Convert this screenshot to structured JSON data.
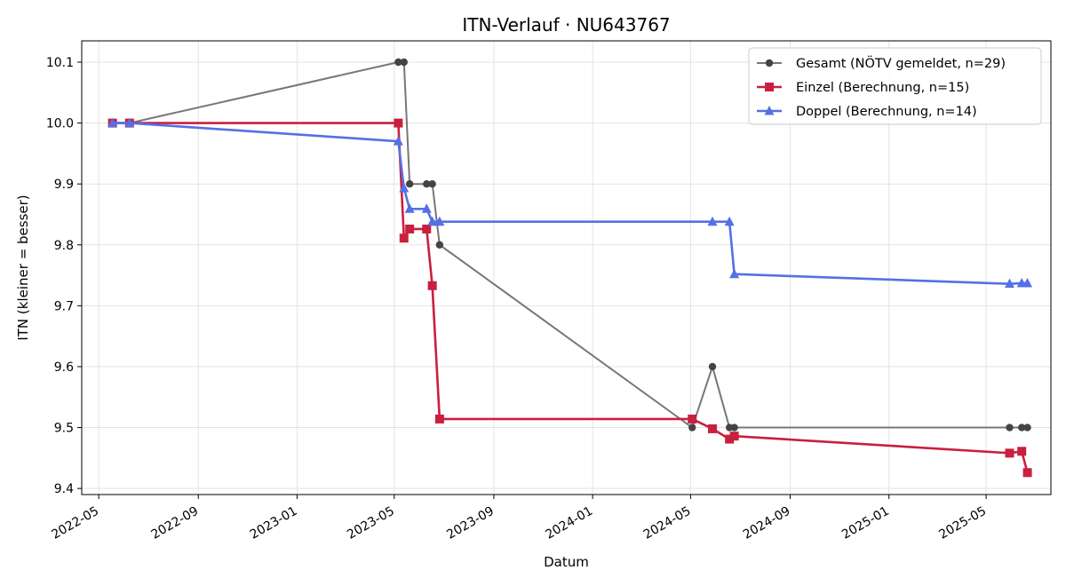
{
  "chart_data": {
    "type": "line",
    "title": "ITN-Verlauf · NU643767",
    "xlabel": "Datum",
    "ylabel": "ITN  (kleiner = besser)",
    "x_ticks": [
      "2022-05",
      "2022-09",
      "2023-01",
      "2023-05",
      "2023-09",
      "2024-01",
      "2024-05",
      "2024-09",
      "2025-01",
      "2025-05"
    ],
    "y_ticks": [
      "9.4",
      "9.5",
      "9.6",
      "9.7",
      "9.8",
      "9.9",
      "10.0",
      "10.1"
    ],
    "ylim": [
      9.39,
      10.135
    ],
    "xlim": [
      "2022-04-10",
      "2025-07-20"
    ],
    "grid": true,
    "legend_position": "top-right",
    "series": [
      {
        "name": "Gesamt (NÖTV gemeldet, n=29)",
        "color": "#777777",
        "marker_color": "#444444",
        "marker": "circle",
        "points": [
          [
            "2022-05-18",
            10.0
          ],
          [
            "2022-06-08",
            10.0
          ],
          [
            "2023-05-06",
            10.1
          ],
          [
            "2023-05-13",
            10.1
          ],
          [
            "2023-05-20",
            9.9
          ],
          [
            "2023-06-10",
            9.9
          ],
          [
            "2023-06-17",
            9.9
          ],
          [
            "2023-06-26",
            9.8
          ],
          [
            "2024-05-03",
            9.5
          ],
          [
            "2024-05-28",
            9.6
          ],
          [
            "2024-06-18",
            9.5
          ],
          [
            "2024-06-24",
            9.5
          ],
          [
            "2025-05-30",
            9.5
          ],
          [
            "2025-06-14",
            9.5
          ],
          [
            "2025-06-21",
            9.5
          ]
        ]
      },
      {
        "name": "Einzel (Berechnung, n=15)",
        "color": "#c8203e",
        "marker": "square",
        "points": [
          [
            "2022-05-18",
            10.0
          ],
          [
            "2022-06-08",
            10.0
          ],
          [
            "2023-05-06",
            10.0
          ],
          [
            "2023-05-13",
            9.811
          ],
          [
            "2023-05-20",
            9.826
          ],
          [
            "2023-06-10",
            9.826
          ],
          [
            "2023-06-17",
            9.733
          ],
          [
            "2023-06-26",
            9.514
          ],
          [
            "2024-05-03",
            9.514
          ],
          [
            "2024-05-28",
            9.498
          ],
          [
            "2024-06-18",
            9.481
          ],
          [
            "2024-06-24",
            9.486
          ],
          [
            "2025-05-30",
            9.458
          ],
          [
            "2025-06-14",
            9.461
          ],
          [
            "2025-06-21",
            9.426
          ]
        ]
      },
      {
        "name": "Doppel (Berechnung, n=14)",
        "color": "#5470e6",
        "marker": "triangle",
        "points": [
          [
            "2022-05-18",
            10.0
          ],
          [
            "2022-06-08",
            10.0
          ],
          [
            "2023-05-06",
            9.97
          ],
          [
            "2023-05-13",
            9.893
          ],
          [
            "2023-05-20",
            9.859
          ],
          [
            "2023-06-10",
            9.859
          ],
          [
            "2023-06-17",
            9.838
          ],
          [
            "2023-06-26",
            9.838
          ],
          [
            "2024-05-28",
            9.838
          ],
          [
            "2024-06-18",
            9.838
          ],
          [
            "2024-06-24",
            9.752
          ],
          [
            "2025-05-30",
            9.736
          ],
          [
            "2025-06-14",
            9.737
          ],
          [
            "2025-06-21",
            9.737
          ]
        ]
      }
    ]
  }
}
